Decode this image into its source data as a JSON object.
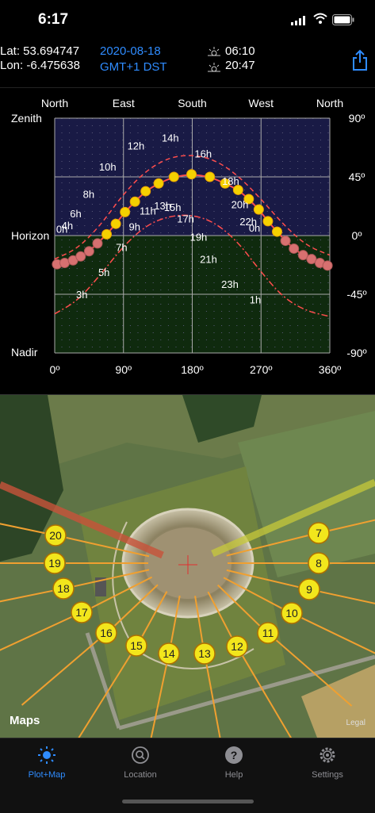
{
  "status": {
    "time": "6:17"
  },
  "info": {
    "lat": "Lat: 53.694747",
    "lon": "Lon: -6.475638",
    "date": "2020-08-18",
    "tz": "GMT+1 DST",
    "sunrise": "06:10",
    "sunset": "20:47"
  },
  "plot": {
    "top_labels": [
      "North",
      "East",
      "South",
      "West",
      "North"
    ],
    "left_labels": [
      "Zenith",
      "Horizon",
      "Nadir"
    ],
    "right_labels": [
      "90º",
      "45º",
      "0º",
      "-45º",
      "-90º"
    ],
    "bottom_labels": [
      "0º",
      "90º",
      "180º",
      "270º",
      "360º"
    ]
  },
  "chart_data": {
    "type": "line",
    "title": "",
    "xlabel": "",
    "ylabel": "",
    "xlim": [
      0,
      360
    ],
    "ylim": [
      -90,
      90
    ],
    "x_ticks": [
      "0º",
      "90º",
      "180º",
      "270º",
      "360º"
    ],
    "y_ticks": [
      "90º",
      "45º",
      "0º",
      "-45º",
      "-90º"
    ],
    "sun_positions": [
      {
        "az": 3,
        "alt": -22
      },
      {
        "az": 13,
        "alt": -21
      },
      {
        "az": 24,
        "alt": -19
      },
      {
        "az": 34,
        "alt": -16
      },
      {
        "az": 45,
        "alt": -12
      },
      {
        "az": 56,
        "alt": -6
      },
      {
        "az": 68,
        "alt": 1
      },
      {
        "az": 80,
        "alt": 9
      },
      {
        "az": 92,
        "alt": 18
      },
      {
        "az": 105,
        "alt": 26
      },
      {
        "az": 119,
        "alt": 34
      },
      {
        "az": 136,
        "alt": 40
      },
      {
        "az": 156,
        "alt": 45
      },
      {
        "az": 179,
        "alt": 47
      },
      {
        "az": 203,
        "alt": 45
      },
      {
        "az": 223,
        "alt": 40
      },
      {
        "az": 240,
        "alt": 35
      },
      {
        "az": 254,
        "alt": 28
      },
      {
        "az": 267,
        "alt": 20
      },
      {
        "az": 279,
        "alt": 11
      },
      {
        "az": 291,
        "alt": 3
      },
      {
        "az": 302,
        "alt": -4
      },
      {
        "az": 313,
        "alt": -10
      },
      {
        "az": 325,
        "alt": -15
      },
      {
        "az": 336,
        "alt": -18
      },
      {
        "az": 347,
        "alt": -21
      },
      {
        "az": 357,
        "alt": -23
      }
    ],
    "hour_labels": [
      {
        "text": "0h",
        "az": 2,
        "alt": 2
      },
      {
        "text": "3h",
        "az": 28,
        "alt": -48
      },
      {
        "text": "4h",
        "az": 9,
        "alt": 5
      },
      {
        "text": "5h",
        "az": 57,
        "alt": -31
      },
      {
        "text": "6h",
        "az": 20,
        "alt": 14
      },
      {
        "text": "7h",
        "az": 80,
        "alt": -12
      },
      {
        "text": "8h",
        "az": 37,
        "alt": 29
      },
      {
        "text": "9h",
        "az": 97,
        "alt": 4
      },
      {
        "text": "10h",
        "az": 58,
        "alt": 50
      },
      {
        "text": "11h",
        "az": 111,
        "alt": 16
      },
      {
        "text": "12h",
        "az": 95,
        "alt": 66
      },
      {
        "text": "13h",
        "az": 130,
        "alt": 20
      },
      {
        "text": "14h",
        "az": 140,
        "alt": 72
      },
      {
        "text": "15h",
        "az": 143,
        "alt": 19
      },
      {
        "text": "16h",
        "az": 183,
        "alt": 60
      },
      {
        "text": "17h",
        "az": 160,
        "alt": 10
      },
      {
        "text": "18h",
        "az": 219,
        "alt": 39
      },
      {
        "text": "19h",
        "az": 177,
        "alt": -4
      },
      {
        "text": "20h",
        "az": 231,
        "alt": 21
      },
      {
        "text": "21h",
        "az": 190,
        "alt": -21
      },
      {
        "text": "22h",
        "az": 242,
        "alt": 8
      },
      {
        "text": "23h",
        "az": 218,
        "alt": -40
      },
      {
        "text": "0h",
        "az": 254,
        "alt": 3
      },
      {
        "text": "1h",
        "az": 255,
        "alt": -52
      }
    ],
    "upper_dashed": [
      {
        "az": 0,
        "alt": -18
      },
      {
        "az": 30,
        "alt": -10
      },
      {
        "az": 60,
        "alt": 8
      },
      {
        "az": 90,
        "alt": 32
      },
      {
        "az": 120,
        "alt": 50
      },
      {
        "az": 150,
        "alt": 60
      },
      {
        "az": 180,
        "alt": 62
      },
      {
        "az": 210,
        "alt": 58
      },
      {
        "az": 240,
        "alt": 46
      },
      {
        "az": 270,
        "alt": 28
      },
      {
        "az": 300,
        "alt": 8
      },
      {
        "az": 330,
        "alt": -8
      },
      {
        "az": 360,
        "alt": -15
      }
    ],
    "lower_dashdot": [
      {
        "az": 0,
        "alt": -60
      },
      {
        "az": 30,
        "alt": -50
      },
      {
        "az": 60,
        "alt": -30
      },
      {
        "az": 90,
        "alt": -8
      },
      {
        "az": 120,
        "alt": 8
      },
      {
        "az": 150,
        "alt": 15
      },
      {
        "az": 180,
        "alt": 16
      },
      {
        "az": 210,
        "alt": 10
      },
      {
        "az": 240,
        "alt": -5
      },
      {
        "az": 270,
        "alt": -28
      },
      {
        "az": 300,
        "alt": -48
      },
      {
        "az": 330,
        "alt": -58
      },
      {
        "az": 360,
        "alt": -62
      }
    ],
    "colors": {
      "sky": "#191a45",
      "ground": "#0f2a0e",
      "day_point": "#f5d100",
      "night_point": "#d77070",
      "curve": "#ff4d4d"
    }
  },
  "map": {
    "attribution": "Maps",
    "legal": "Legal",
    "hour_markers": [
      "7",
      "8",
      "9",
      "10",
      "11",
      "12",
      "13",
      "14",
      "15",
      "16",
      "17",
      "18",
      "19",
      "20"
    ],
    "sunrise_bearing_deg": 68,
    "sunset_bearing_deg": 292
  },
  "tabs": [
    {
      "label": "Plot+Map",
      "icon": "sun-icon",
      "active": true
    },
    {
      "label": "Location",
      "icon": "location-search-icon",
      "active": false
    },
    {
      "label": "Help",
      "icon": "help-icon",
      "active": false
    },
    {
      "label": "Settings",
      "icon": "gear-icon",
      "active": false
    }
  ]
}
